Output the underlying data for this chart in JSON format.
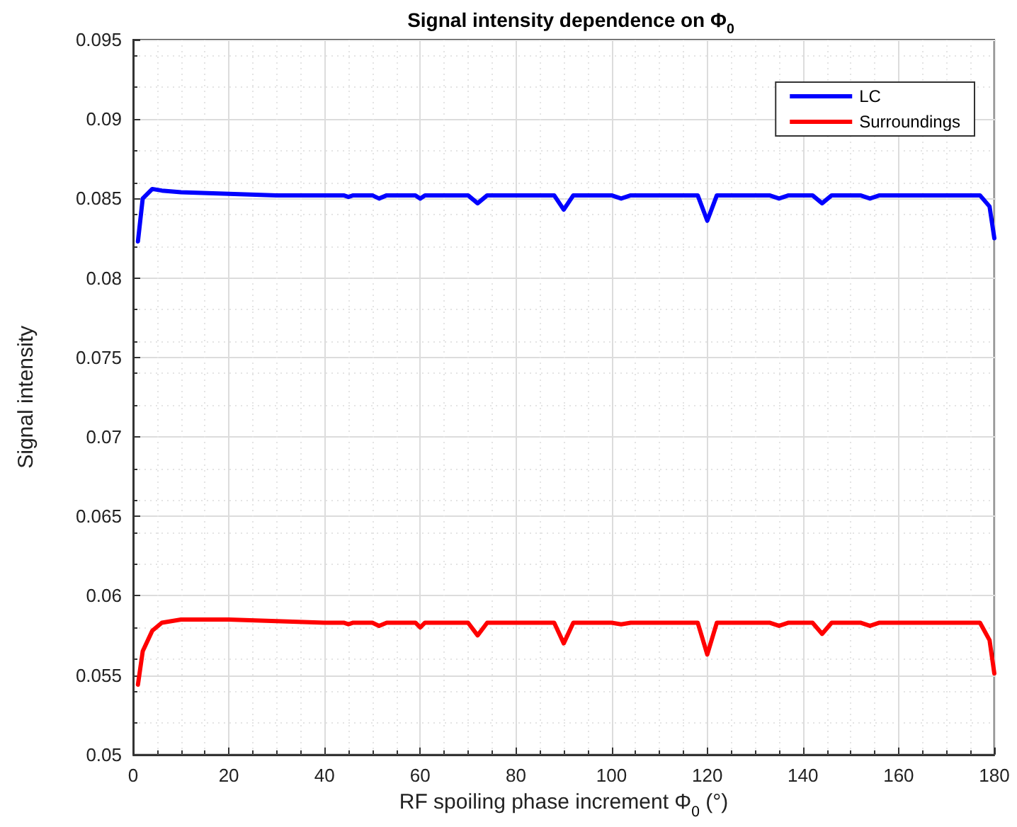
{
  "chart_data": {
    "type": "line",
    "title": "Signal intensity dependence on Φ$_{0}$",
    "xlabel": "RF spoiling phase increment Φ$_{0}$ (°)",
    "ylabel": "Signal intensity",
    "x": [
      1,
      2,
      4,
      6,
      10,
      20,
      30,
      40,
      44,
      45,
      46,
      50,
      51.4,
      53,
      59,
      60,
      61,
      70,
      72,
      74,
      88,
      90,
      92,
      100,
      102,
      104,
      118,
      120,
      122,
      133,
      135,
      137,
      142,
      144,
      146,
      152,
      154,
      156,
      170,
      177,
      179,
      180
    ],
    "series": [
      {
        "name": "LC",
        "color": "#0000ff",
        "values": [
          0.0823,
          0.085,
          0.0856,
          0.0855,
          0.0854,
          0.0853,
          0.0852,
          0.0852,
          0.0852,
          0.0851,
          0.0852,
          0.0852,
          0.085,
          0.0852,
          0.0852,
          0.085,
          0.0852,
          0.0852,
          0.0847,
          0.0852,
          0.0852,
          0.0843,
          0.0852,
          0.0852,
          0.085,
          0.0852,
          0.0852,
          0.0836,
          0.0852,
          0.0852,
          0.085,
          0.0852,
          0.0852,
          0.0847,
          0.0852,
          0.0852,
          0.085,
          0.0852,
          0.0852,
          0.0852,
          0.0845,
          0.0825
        ]
      },
      {
        "name": "Surroundings",
        "color": "#ff0000",
        "values": [
          0.0544,
          0.0565,
          0.0578,
          0.0583,
          0.0585,
          0.0585,
          0.0584,
          0.0583,
          0.0583,
          0.0582,
          0.0583,
          0.0583,
          0.0581,
          0.0583,
          0.0583,
          0.058,
          0.0583,
          0.0583,
          0.0575,
          0.0583,
          0.0583,
          0.057,
          0.0583,
          0.0583,
          0.0582,
          0.0583,
          0.0583,
          0.0563,
          0.0583,
          0.0583,
          0.0581,
          0.0583,
          0.0583,
          0.0576,
          0.0583,
          0.0583,
          0.0581,
          0.0583,
          0.0583,
          0.0583,
          0.0572,
          0.0551
        ]
      }
    ],
    "xlim": [
      0,
      180
    ],
    "xticks": [
      0,
      20,
      40,
      60,
      80,
      100,
      120,
      140,
      160,
      180
    ],
    "ylim": [
      0.05,
      0.095
    ],
    "yticks": [
      0.05,
      0.055,
      0.06,
      0.065,
      0.07,
      0.075,
      0.08,
      0.085,
      0.09,
      0.095
    ],
    "grid": true,
    "legend": "top right",
    "marker": "none",
    "line_style": "solid"
  }
}
